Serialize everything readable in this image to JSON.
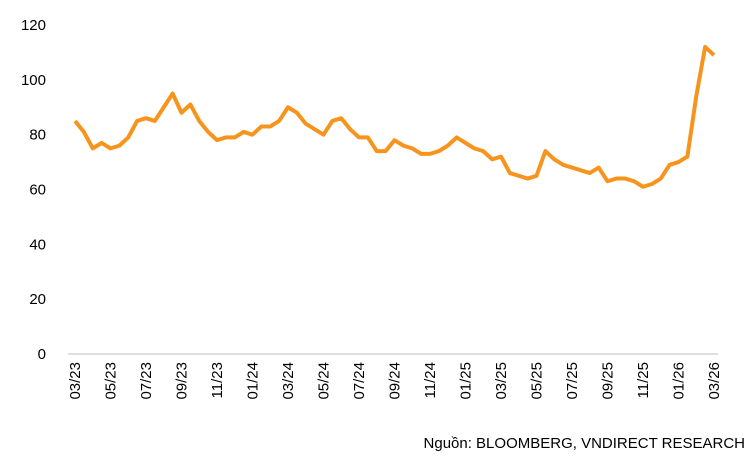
{
  "chart_data": {
    "type": "line",
    "categories": [
      "03/23",
      null,
      null,
      null,
      "05/23",
      null,
      null,
      null,
      "07/23",
      null,
      null,
      null,
      "09/23",
      null,
      null,
      null,
      "11/23",
      null,
      null,
      null,
      "01/24",
      null,
      null,
      null,
      "03/24",
      null,
      null,
      null,
      "05/24",
      null,
      null,
      null,
      "07/24",
      null,
      null,
      null,
      "09/24",
      null,
      null,
      null,
      "11/24",
      null,
      null,
      null,
      "01/25",
      null,
      null,
      null,
      "03/25",
      null,
      null,
      null,
      "05/25",
      null,
      null,
      null,
      "07/25",
      null,
      null,
      null,
      "09/25",
      null,
      null,
      null,
      "11/25",
      null,
      null,
      null,
      "01/26",
      null,
      null,
      null,
      "03/26"
    ],
    "series": [
      {
        "name": null,
        "color": "#f7941d",
        "values": [
          85,
          81,
          75,
          77,
          75,
          76,
          79,
          85,
          86,
          85,
          90,
          95,
          88,
          91,
          85,
          81,
          78,
          79,
          79,
          81,
          80,
          83,
          83,
          85,
          90,
          88,
          84,
          82,
          80,
          85,
          86,
          82,
          79,
          79,
          74,
          74,
          78,
          76,
          75,
          73,
          73,
          74,
          76,
          79,
          77,
          75,
          74,
          71,
          72,
          66,
          65,
          64,
          65,
          74,
          71,
          69,
          68,
          67,
          66,
          68,
          63,
          64,
          64,
          63,
          61,
          62,
          64,
          69,
          70,
          72,
          94,
          112,
          109
        ]
      }
    ],
    "ylim": [
      0,
      120
    ],
    "yticks": [
      0,
      20,
      40,
      60,
      80,
      100,
      120
    ],
    "grid": false,
    "source": "Nguồn:  BLOOMBERG, VNDIRECT RESEARCH"
  }
}
